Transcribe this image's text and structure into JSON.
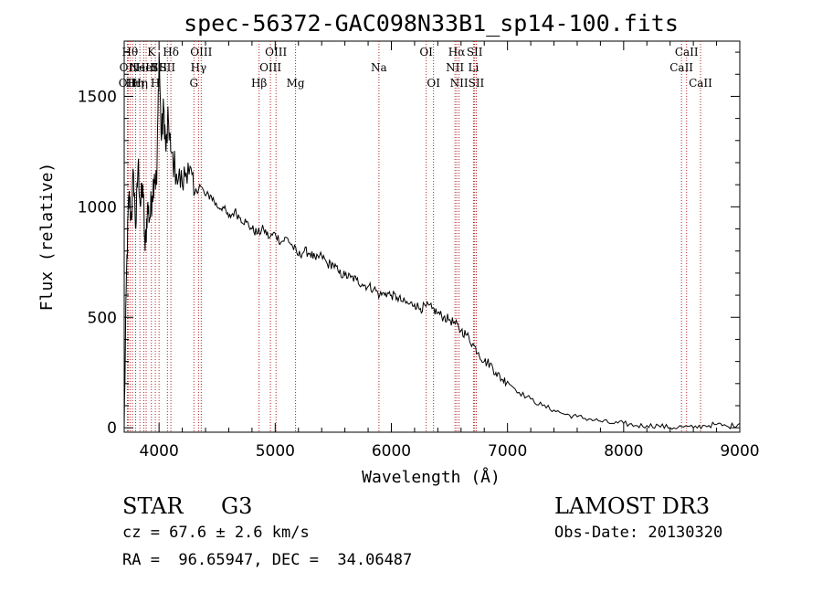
{
  "chart_data": {
    "type": "line",
    "title": "spec-56372-GAC098N33B1_sp14-100.fits",
    "xlabel": "Wavelength (Å)",
    "ylabel": "Flux (relative)",
    "xlim": [
      3700,
      9000
    ],
    "ylim": [
      -20,
      1750
    ],
    "xticks": [
      4000,
      5000,
      6000,
      7000,
      8000,
      9000
    ],
    "yticks": [
      0,
      500,
      1000,
      1500
    ],
    "grid": false,
    "series": [
      {
        "name": "spectrum",
        "x": [
          3700,
          3720,
          3740,
          3760,
          3780,
          3800,
          3820,
          3840,
          3860,
          3880,
          3900,
          3920,
          3940,
          3960,
          3980,
          4000,
          4020,
          4040,
          4060,
          4080,
          4100,
          4150,
          4200,
          4250,
          4300,
          4350,
          4400,
          4450,
          4500,
          4550,
          4600,
          4650,
          4700,
          4750,
          4800,
          4850,
          4900,
          4950,
          5000,
          5050,
          5100,
          5150,
          5200,
          5250,
          5300,
          5350,
          5400,
          5450,
          5500,
          5550,
          5600,
          5650,
          5700,
          5750,
          5800,
          5850,
          5900,
          5950,
          6000,
          6050,
          6100,
          6150,
          6200,
          6250,
          6300,
          6350,
          6400,
          6450,
          6500,
          6550,
          6600,
          6650,
          6700,
          6750,
          6800,
          6850,
          6900,
          6950,
          7000,
          7100,
          7200,
          7300,
          7400,
          7500,
          7600,
          7700,
          7800,
          7900,
          8000,
          8100,
          8200,
          8300,
          8400,
          8500,
          8600,
          8700,
          8800,
          8900,
          9000
        ],
        "values": [
          0,
          700,
          1050,
          950,
          1150,
          900,
          1200,
          1000,
          1100,
          800,
          1000,
          950,
          1050,
          1150,
          1100,
          1700,
          1300,
          1450,
          1250,
          1400,
          1250,
          1150,
          1100,
          1200,
          1050,
          1100,
          1050,
          1050,
          1000,
          1000,
          950,
          980,
          950,
          930,
          900,
          880,
          900,
          860,
          880,
          840,
          860,
          820,
          780,
          800,
          790,
          760,
          780,
          740,
          740,
          700,
          690,
          680,
          670,
          650,
          640,
          630,
          600,
          610,
          600,
          590,
          570,
          560,
          560,
          540,
          550,
          540,
          520,
          500,
          490,
          470,
          440,
          420,
          380,
          340,
          300,
          290,
          250,
          220,
          210,
          160,
          130,
          100,
          80,
          60,
          50,
          40,
          30,
          20,
          20,
          10,
          10,
          10,
          0,
          5,
          0,
          10,
          15,
          5,
          20
        ]
      }
    ],
    "lines": [
      {
        "x": 3727,
        "label": "OII",
        "row": 2
      },
      {
        "x": 3734,
        "label": "OII",
        "row": 1
      },
      {
        "x": 3750,
        "label": "Hθ",
        "row": 0
      },
      {
        "x": 3771,
        "label": "Hι",
        "row": 2
      },
      {
        "x": 3798,
        "label": "Hη",
        "row": 2
      },
      {
        "x": 3835,
        "label": "Hη",
        "row": 2
      },
      {
        "x": 3869,
        "label": "NeIII",
        "row": 1
      },
      {
        "x": 3889,
        "label": "HeI",
        "row": 1
      },
      {
        "x": 3934,
        "label": "K",
        "row": 0
      },
      {
        "x": 3968,
        "label": "H",
        "row": 2
      },
      {
        "x": 4000,
        "label": "SII",
        "row": 1
      },
      {
        "x": 4072,
        "label": "SII",
        "row": 1
      },
      {
        "x": 4102,
        "label": "Hδ",
        "row": 0
      },
      {
        "x": 4300,
        "label": "G",
        "row": 2
      },
      {
        "x": 4340,
        "label": "Hγ",
        "row": 1
      },
      {
        "x": 4363,
        "label": "OIII",
        "row": 0
      },
      {
        "x": 4861,
        "label": "Hβ",
        "row": 2
      },
      {
        "x": 4959,
        "label": "OIII",
        "row": 1
      },
      {
        "x": 5007,
        "label": "OIII",
        "row": 0
      },
      {
        "x": 5175,
        "label": "Mg",
        "row": 2
      },
      {
        "x": 5893,
        "label": "Na",
        "row": 1
      },
      {
        "x": 6300,
        "label": "OI",
        "row": 0
      },
      {
        "x": 6363,
        "label": "OI",
        "row": 2
      },
      {
        "x": 6548,
        "label": "NII",
        "row": 1
      },
      {
        "x": 6563,
        "label": "Hα",
        "row": 0
      },
      {
        "x": 6583,
        "label": "NII",
        "row": 2
      },
      {
        "x": 6707,
        "label": "Li",
        "row": 1
      },
      {
        "x": 6717,
        "label": "SII",
        "row": 0
      },
      {
        "x": 6731,
        "label": "SII",
        "row": 2
      },
      {
        "x": 8498,
        "label": "CaII",
        "row": 1
      },
      {
        "x": 8542,
        "label": "CaII",
        "row": 0
      },
      {
        "x": 8662,
        "label": "CaII",
        "row": 2
      }
    ]
  },
  "info": {
    "class_label": "STAR",
    "subclass_label": "G3",
    "survey": "LAMOST DR3",
    "cz": "cz = 67.6 ± 2.6 km/s",
    "obs_date": "Obs-Date: 20130320",
    "coords": "RA =  96.65947, DEC =  34.06487"
  }
}
